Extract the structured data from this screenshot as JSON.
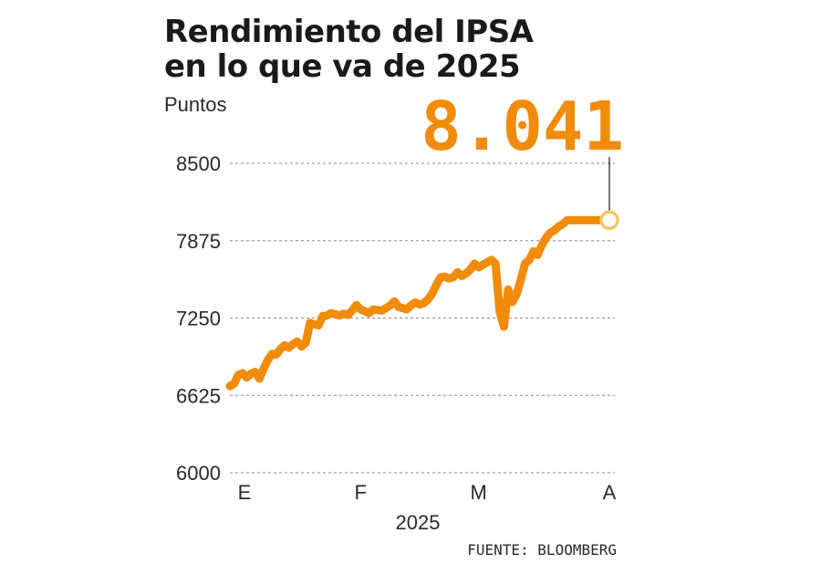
{
  "chart_data": {
    "type": "line",
    "title_line1": "Rendimiento del IPSA",
    "title_line2": "en lo que va de 2025",
    "ylabel": "Puntos",
    "xlabel": "2025",
    "source": "FUENTE: BLOOMBERG",
    "ylim": [
      6000,
      8500
    ],
    "yticks": [
      8500,
      7875,
      7250,
      6625,
      6000
    ],
    "ytick_labels": [
      "8500",
      "7875",
      "7250",
      "6625",
      "6000"
    ],
    "xticks": [
      {
        "label": "E",
        "day": 1
      },
      {
        "label": "F",
        "day": 32
      },
      {
        "label": "M",
        "day": 60
      },
      {
        "label": "A",
        "day": 91
      }
    ],
    "x_range": [
      1,
      91
    ],
    "grid": true,
    "highlight": {
      "label": "8.041",
      "value": 8041
    },
    "colors": {
      "series": "#f08c0a",
      "marker_fill": "#ffffff",
      "marker_stroke": "#f5c46a",
      "text": "#1a1a1a",
      "grid": "#8a8a8a"
    },
    "series": [
      {
        "days": [
          1,
          2,
          3,
          4,
          5,
          6,
          7,
          8,
          9,
          10,
          11,
          12,
          13,
          14,
          15,
          16,
          17,
          18,
          19,
          20,
          21,
          22,
          23,
          24,
          25,
          26,
          27,
          28,
          29,
          30,
          31,
          32,
          33,
          34,
          35,
          36,
          37,
          38,
          39,
          40,
          41,
          42,
          43,
          44,
          45,
          46,
          47,
          48,
          49,
          50,
          51,
          52,
          53,
          54,
          55,
          56,
          57,
          58,
          59,
          60,
          61,
          62,
          63,
          64,
          65,
          66,
          67,
          68,
          69,
          70,
          71,
          72,
          73,
          74,
          75,
          76,
          77,
          78,
          79,
          80,
          81,
          82,
          83,
          84,
          85,
          86,
          87,
          88,
          89,
          90,
          91
        ],
        "values": [
          6700,
          6720,
          6790,
          6805,
          6770,
          6800,
          6815,
          6760,
          6840,
          6910,
          6960,
          6955,
          7000,
          7030,
          7010,
          7040,
          7060,
          7020,
          7050,
          7210,
          7200,
          7190,
          7265,
          7270,
          7290,
          7280,
          7270,
          7285,
          7275,
          7310,
          7355,
          7320,
          7305,
          7290,
          7320,
          7315,
          7310,
          7330,
          7350,
          7385,
          7340,
          7330,
          7320,
          7355,
          7375,
          7360,
          7370,
          7400,
          7450,
          7520,
          7580,
          7585,
          7570,
          7580,
          7620,
          7590,
          7610,
          7640,
          7690,
          7660,
          7680,
          7700,
          7720,
          7690,
          7300,
          7180,
          7480,
          7380,
          7440,
          7560,
          7690,
          7720,
          7790,
          7760,
          7840,
          7900,
          7940,
          7960,
          7990,
          8010,
          8041,
          8041,
          8041,
          8041,
          8041,
          8041,
          8041,
          8041,
          8041,
          8041,
          8041
        ]
      }
    ]
  }
}
